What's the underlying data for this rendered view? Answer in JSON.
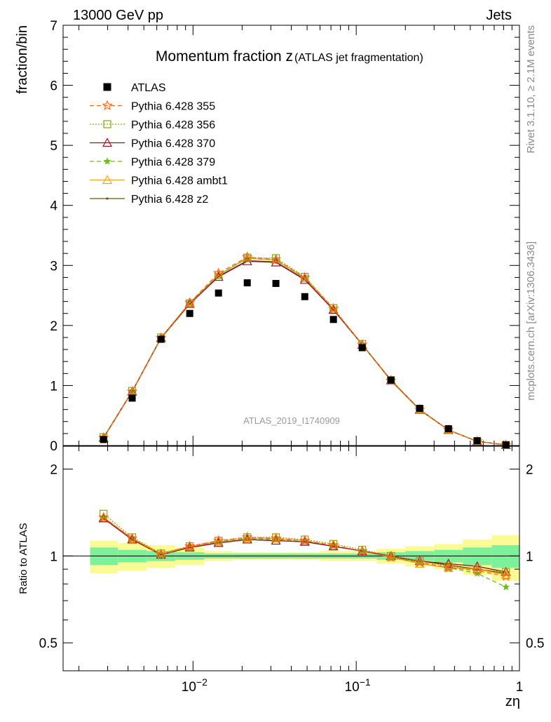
{
  "header": {
    "left": "13000 GeV pp",
    "right": "Jets"
  },
  "side_labels": {
    "rivet": "Rivet 3.1.10, ≥ 2.1M events",
    "mcplots": "mcplots.cern.ch [arXiv:1306.3436]"
  },
  "colors": {
    "data": "#000000",
    "p355": "#ff6a1f",
    "p356": "#8aa313",
    "p370": "#a00f22",
    "p379": "#6bbf1a",
    "ambt1": "#f5a31a",
    "z2": "#5e5a06",
    "band_inner": "#7ef09a",
    "band_outer": "#fbfb96"
  },
  "chart_data": [
    {
      "type": "line",
      "title": "Momentum fraction z",
      "title_sub": "(ATLAS jet fragmentation)",
      "watermark": "ATLAS_2019_I1740909",
      "xlabel": "zη",
      "ylabel": "fraction/bin",
      "x_scale": "log",
      "xlim": [
        0.0016,
        1.0
      ],
      "ylim": [
        0,
        7
      ],
      "y_ticks": [
        "0",
        "1",
        "2",
        "3",
        "4",
        "5",
        "6",
        "7"
      ],
      "x_ticks": [
        "10−2",
        "10−1",
        "1"
      ],
      "legend_position": "top-left",
      "x": [
        0.00283,
        0.00424,
        0.00637,
        0.00955,
        0.01433,
        0.0215,
        0.0322,
        0.0484,
        0.0725,
        0.1088,
        0.1632,
        0.2448,
        0.3672,
        0.5508,
        0.8262
      ],
      "series": [
        {
          "name": "ATLAS",
          "key": "data",
          "marker": "square",
          "values": [
            0.1,
            0.79,
            1.77,
            2.2,
            2.54,
            2.71,
            2.7,
            2.48,
            2.1,
            1.63,
            1.09,
            0.62,
            0.28,
            0.08,
            0.01
          ]
        },
        {
          "name": "Pythia 6.428 355",
          "key": "p355",
          "marker": "star-open",
          "dash": "6,4",
          "values": [
            0.13,
            0.9,
            1.79,
            2.38,
            2.87,
            3.14,
            3.1,
            2.8,
            2.28,
            1.68,
            1.08,
            0.6,
            0.26,
            0.07,
            0.01
          ]
        },
        {
          "name": "Pythia 6.428 356",
          "key": "p356",
          "marker": "square-open",
          "dash": "2,2",
          "values": [
            0.14,
            0.91,
            1.8,
            2.37,
            2.84,
            3.13,
            3.12,
            2.81,
            2.29,
            1.69,
            1.09,
            0.6,
            0.26,
            0.07,
            0.01
          ]
        },
        {
          "name": "Pythia 6.428 370",
          "key": "p370",
          "marker": "triangle-open",
          "dash": "",
          "values": [
            0.13,
            0.9,
            1.79,
            2.36,
            2.81,
            3.07,
            3.05,
            2.76,
            2.26,
            1.68,
            1.09,
            0.6,
            0.26,
            0.07,
            0.01
          ]
        },
        {
          "name": "Pythia 6.428 379",
          "key": "p379",
          "marker": "star-filled",
          "dash": "6,4",
          "values": [
            0.13,
            0.9,
            1.8,
            2.37,
            2.84,
            3.12,
            3.09,
            2.79,
            2.27,
            1.68,
            1.08,
            0.59,
            0.26,
            0.07,
            0.01
          ]
        },
        {
          "name": "Pythia 6.428 ambt1",
          "key": "ambt1",
          "marker": "triangle-open",
          "dash": "",
          "values": [
            0.13,
            0.9,
            1.8,
            2.38,
            2.84,
            3.12,
            3.09,
            2.79,
            2.27,
            1.68,
            1.08,
            0.59,
            0.26,
            0.07,
            0.01
          ]
        },
        {
          "name": "Pythia 6.428 z2",
          "key": "z2",
          "marker": "dot",
          "dash": "",
          "values": [
            0.13,
            0.9,
            1.79,
            2.36,
            2.82,
            3.08,
            3.06,
            2.77,
            2.26,
            1.68,
            1.08,
            0.6,
            0.26,
            0.07,
            0.01
          ]
        }
      ]
    },
    {
      "type": "line",
      "ylabel": "Ratio to ATLAS",
      "y_scale": "log",
      "ylim": [
        0.4,
        2.4
      ],
      "y_ticks": [
        "0.5",
        "1",
        "2"
      ],
      "x_scale": "log",
      "xlim": [
        0.0016,
        1.0
      ],
      "x_edges": [
        0.00234,
        0.00347,
        0.00521,
        0.00781,
        0.01172,
        0.01758,
        0.02637,
        0.03955,
        0.05933,
        0.08899,
        0.13349,
        0.20023,
        0.30034,
        0.45051,
        0.67577,
        1.0
      ],
      "band_inner": [
        0.07,
        0.05,
        0.04,
        0.03,
        0.02,
        0.02,
        0.02,
        0.02,
        0.02,
        0.02,
        0.03,
        0.04,
        0.05,
        0.07,
        0.09
      ],
      "band_outer": [
        0.13,
        0.11,
        0.09,
        0.07,
        0.04,
        0.03,
        0.03,
        0.03,
        0.04,
        0.04,
        0.06,
        0.08,
        0.1,
        0.14,
        0.18
      ],
      "series": [
        {
          "name": "Pythia 6.428 355",
          "key": "p355",
          "values": [
            1.36,
            1.15,
            1.01,
            1.08,
            1.13,
            1.16,
            1.15,
            1.13,
            1.09,
            1.04,
            0.99,
            0.95,
            0.91,
            0.89,
            0.85
          ]
        },
        {
          "name": "Pythia 6.428 356",
          "key": "p356",
          "values": [
            1.4,
            1.16,
            1.02,
            1.08,
            1.13,
            1.16,
            1.16,
            1.14,
            1.1,
            1.05,
            1.0,
            0.96,
            0.92,
            0.9,
            0.88
          ]
        },
        {
          "name": "Pythia 6.428 370",
          "key": "p370",
          "values": [
            1.35,
            1.14,
            1.01,
            1.07,
            1.11,
            1.14,
            1.13,
            1.12,
            1.08,
            1.04,
            1.0,
            0.96,
            0.94,
            0.92,
            0.88
          ]
        },
        {
          "name": "Pythia 6.428 379",
          "key": "p379",
          "values": [
            1.36,
            1.15,
            1.01,
            1.08,
            1.12,
            1.15,
            1.14,
            1.13,
            1.08,
            1.04,
            0.99,
            0.95,
            0.91,
            0.87,
            0.78
          ]
        },
        {
          "name": "Pythia 6.428 ambt1",
          "key": "ambt1",
          "values": [
            1.36,
            1.15,
            1.02,
            1.08,
            1.12,
            1.15,
            1.15,
            1.13,
            1.08,
            1.04,
            0.99,
            0.94,
            0.91,
            0.9,
            0.86
          ]
        },
        {
          "name": "Pythia 6.428 z2",
          "key": "z2",
          "values": [
            1.35,
            1.14,
            1.01,
            1.07,
            1.11,
            1.14,
            1.13,
            1.12,
            1.08,
            1.04,
            0.99,
            0.96,
            0.93,
            0.9,
            0.87
          ]
        }
      ]
    }
  ]
}
